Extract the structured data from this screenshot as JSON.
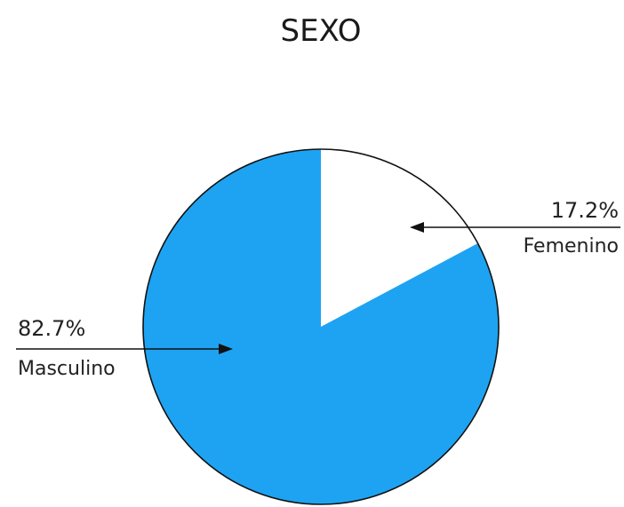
{
  "chart_data": {
    "type": "pie",
    "title": "SEXO",
    "slices": [
      {
        "label": "Femenino",
        "pct_text": "17.2%",
        "value": 17.2,
        "color": "#ffffff"
      },
      {
        "label": "Masculino",
        "pct_text": "82.7%",
        "value": 82.7,
        "color": "#1ea3f2"
      }
    ],
    "legend": "none"
  },
  "colors": {
    "masculino": "#1ea3f2",
    "femenino": "#ffffff",
    "outline": "#111111",
    "arrow": "#111111"
  }
}
